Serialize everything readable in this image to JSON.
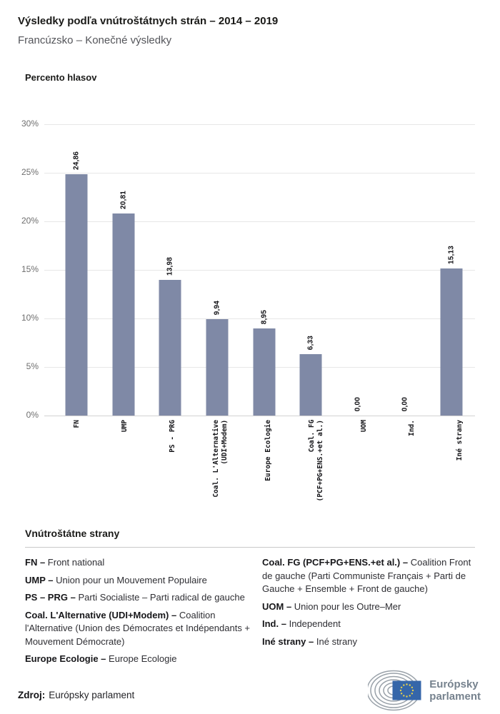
{
  "header": {
    "title": "Výsledky podľa vnútroštátnych strán – 2014 – 2019",
    "subtitle": "Francúzsko – Konečné výsledky"
  },
  "chart_data": {
    "type": "bar",
    "title": "",
    "ylabel": "Percento hlasov",
    "xlabel": "",
    "ylim": [
      0,
      30
    ],
    "grid": true,
    "bar_color": "#7f89a6",
    "categories": [
      "FN",
      "UMP",
      "PS - PRG",
      "Coal. L'Alternative\n(UDI+Modem)",
      "Europe Ecologie",
      "Coal. FG\n(PCF+PG+ENS.+et al.)",
      "UOM",
      "Ind.",
      "Iné strany"
    ],
    "values": [
      24.86,
      20.81,
      13.98,
      9.94,
      8.95,
      6.33,
      0.0,
      0.0,
      15.13
    ],
    "value_labels": [
      "24,86",
      "20,81",
      "13,98",
      "9,94",
      "8,95",
      "6,33",
      "0,00",
      "0,00",
      "15,13"
    ],
    "y_ticks": [
      {
        "value": 30,
        "label": "30%"
      },
      {
        "value": 25,
        "label": "25%"
      },
      {
        "value": 20,
        "label": "20%"
      },
      {
        "value": 15,
        "label": "15%"
      },
      {
        "value": 10,
        "label": "10%"
      },
      {
        "value": 5,
        "label": "5%"
      },
      {
        "value": 0,
        "label": "0%"
      }
    ]
  },
  "legend": {
    "heading": "Vnútroštátne strany",
    "columns": [
      [
        {
          "term": "FN –",
          "desc": "Front national"
        },
        {
          "term": "UMP –",
          "desc": "Union pour un Mouvement Populaire"
        },
        {
          "term": "PS – PRG –",
          "desc": "Parti Socialiste – Parti radical de gauche"
        },
        {
          "term": "Coal. L'Alternative (UDI+Modem) –",
          "desc": "Coalition l'Alternative (Union des Démocrates et Indépendants + Mouvement Démocrate)"
        },
        {
          "term": "Europe Ecologie –",
          "desc": "Europe Ecologie"
        }
      ],
      [
        {
          "term": "Coal. FG (PCF+PG+ENS.+et al.) –",
          "desc": "Coalition Front de gauche (Parti Communiste Français + Parti de Gauche + Ensemble + Front de gauche)"
        },
        {
          "term": "UOM –",
          "desc": "Union pour les Outre–Mer"
        },
        {
          "term": "Ind. –",
          "desc": "Independent"
        },
        {
          "term": "Iné strany –",
          "desc": "Iné strany"
        }
      ]
    ]
  },
  "footer": {
    "source_label": "Zdroj:",
    "source_text": "Európsky parlament"
  },
  "logo": {
    "line1": "Európsky",
    "line2": "parlament",
    "flag_color": "#3566a9",
    "star_color": "#e8d14b",
    "arc_color": "#99a1a9",
    "icon": "eu-parliament-hemicycle-icon"
  }
}
